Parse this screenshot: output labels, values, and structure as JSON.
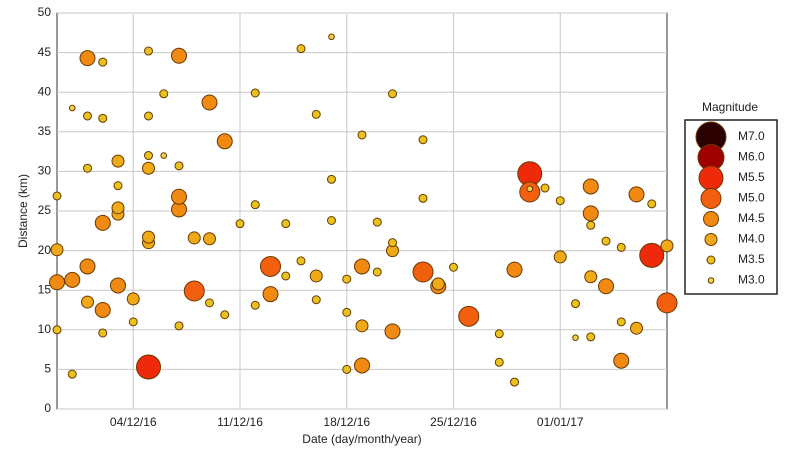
{
  "chart_data": {
    "type": "bubble-scatter",
    "x_label": "Date (day/month/year)",
    "y_label": "Distance (km)",
    "legend_title": "Magnitude",
    "grid": true,
    "legend": "right",
    "xlim": [
      "2016-11-29",
      "2017-01-08"
    ],
    "xticks": [
      {
        "value": "2016-12-04",
        "label": "04/12/16"
      },
      {
        "value": "2016-12-11",
        "label": "11/12/16"
      },
      {
        "value": "2016-12-18",
        "label": "18/12/16"
      },
      {
        "value": "2016-12-25",
        "label": "25/12/16"
      },
      {
        "value": "2017-01-01",
        "label": "01/01/17"
      }
    ],
    "ylim": [
      0,
      50
    ],
    "yticks": [
      0,
      5,
      10,
      15,
      20,
      25,
      30,
      35,
      40,
      45,
      50
    ],
    "series": [
      {
        "name": "M7.0",
        "color": "#2a0000",
        "x": [],
        "values": []
      },
      {
        "name": "M6.0",
        "color": "#a00000",
        "x": [],
        "values": []
      },
      {
        "name": "M5.5",
        "color": "#ee2a0a",
        "x": [
          "2016-12-05",
          "2016-12-30",
          "2017-01-07"
        ],
        "values": [
          5.3,
          29.7,
          19.4
        ]
      },
      {
        "name": "M5.0",
        "color": "#f2600f",
        "x": [
          "2016-12-08",
          "2016-12-13",
          "2016-12-26",
          "2017-01-08",
          "2016-12-23",
          "2016-12-30"
        ],
        "values": [
          14.9,
          18.0,
          11.7,
          13.4,
          17.3,
          27.4
        ]
      },
      {
        "name": "M4.5",
        "color": "#f08a12",
        "x": [
          "2016-12-02",
          "2016-12-07",
          "2016-12-09",
          "2016-12-10",
          "2016-12-07",
          "2016-12-02",
          "2016-12-24",
          "2016-12-29",
          "2017-01-03",
          "2017-01-03",
          "2017-01-04",
          "2017-01-06",
          "2016-11-30",
          "2016-11-29",
          "2016-12-21",
          "2016-12-19",
          "2016-12-13",
          "2016-12-03",
          "2016-12-07",
          "2017-01-05",
          "2016-12-19",
          "2016-12-01",
          "2016-12-01"
        ],
        "values": [
          23.5,
          44.6,
          38.7,
          33.8,
          25.2,
          12.5,
          15.5,
          17.6,
          28.1,
          24.7,
          15.5,
          27.1,
          16.3,
          16.0,
          9.8,
          18.0,
          14.5,
          15.6,
          26.8,
          6.1,
          5.5,
          44.3,
          18.0
        ]
      },
      {
        "name": "M4.0",
        "color": "#f0aa18",
        "x": [
          "2016-12-03",
          "2016-12-05",
          "2016-12-08",
          "2016-12-09",
          "2016-12-04",
          "2016-12-05",
          "2017-01-01",
          "2017-01-03",
          "2017-01-06",
          "2017-01-08",
          "2016-12-21",
          "2016-12-24",
          "2016-12-16",
          "2016-12-19",
          "2016-12-01",
          "2016-12-03",
          "2016-11-29",
          "2016-12-05",
          "2016-12-03"
        ],
        "values": [
          24.6,
          21.0,
          21.6,
          21.5,
          13.9,
          21.7,
          19.2,
          16.7,
          10.2,
          20.6,
          20.0,
          15.8,
          16.8,
          10.5,
          13.5,
          25.4,
          20.1,
          30.4,
          31.3
        ]
      },
      {
        "name": "M3.5",
        "color": "#e9c21e",
        "x": [
          "2016-11-29",
          "2016-12-01",
          "2016-12-02",
          "2016-12-02",
          "2016-12-05",
          "2016-12-06",
          "2016-12-05",
          "2016-12-05",
          "2016-12-07",
          "2016-12-01",
          "2016-12-03",
          "2016-12-12",
          "2016-12-11",
          "2016-12-14",
          "2016-12-12",
          "2016-12-15",
          "2016-12-16",
          "2016-12-17",
          "2016-12-17",
          "2016-12-19",
          "2016-12-21",
          "2016-12-23",
          "2016-12-23",
          "2016-12-21",
          "2016-12-20",
          "2016-12-20",
          "2016-12-18",
          "2016-12-16",
          "2016-12-18",
          "2016-12-18",
          "2016-12-12",
          "2016-12-10",
          "2016-12-09",
          "2016-12-07",
          "2016-12-04",
          "2016-12-02",
          "2016-11-29",
          "2016-11-30",
          "2016-12-28",
          "2016-12-28",
          "2016-12-29",
          "2016-12-31",
          "2017-01-01",
          "2017-01-03",
          "2017-01-04",
          "2017-01-05",
          "2017-01-07",
          "2017-01-05",
          "2017-01-03",
          "2017-01-02",
          "2016-12-25",
          "2016-12-14",
          "2016-12-15"
        ],
        "values": [
          26.9,
          37.0,
          36.7,
          43.8,
          45.2,
          39.8,
          37.0,
          32.0,
          30.7,
          30.4,
          28.2,
          25.8,
          23.4,
          23.4,
          39.9,
          45.5,
          37.2,
          29.0,
          23.8,
          34.6,
          39.8,
          34.0,
          26.6,
          21.0,
          23.6,
          17.3,
          16.4,
          13.8,
          12.2,
          5.0,
          13.1,
          11.9,
          13.4,
          10.5,
          11.0,
          9.6,
          10.0,
          4.4,
          9.5,
          5.9,
          3.4,
          27.9,
          26.3,
          23.2,
          21.2,
          20.4,
          25.9,
          11.0,
          9.1,
          13.3,
          17.9,
          16.8,
          18.7
        ]
      },
      {
        "name": "M3.0",
        "color": "#f2d44a",
        "x": [
          "2016-11-30",
          "2016-12-06",
          "2016-12-17",
          "2016-12-30",
          "2017-01-02"
        ],
        "values": [
          38.0,
          32.0,
          47.0,
          27.8,
          9.0
        ]
      }
    ]
  }
}
